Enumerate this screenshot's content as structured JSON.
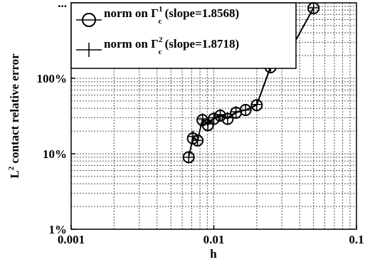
{
  "chart_data": {
    "type": "line",
    "xscale": "log",
    "yscale": "log",
    "xlim": [
      0.001,
      0.1
    ],
    "ylim": [
      0.01,
      10
    ],
    "xlabel": "h",
    "ylabel": {
      "prefix": "L",
      "sup": "2",
      "suffix": " contact relative error"
    },
    "x_ticks": [
      {
        "value": 0.001,
        "label": "0.001"
      },
      {
        "value": 0.01,
        "label": "0.01"
      },
      {
        "value": 0.1,
        "label": "0.1"
      }
    ],
    "y_ticks": [
      {
        "value": 0.01,
        "label": "1%"
      },
      {
        "value": 0.1,
        "label": "10%"
      },
      {
        "value": 1,
        "label": "100%"
      },
      {
        "value": 10,
        "label": "..."
      }
    ],
    "grid": true,
    "legend_position": "top-left",
    "series": [
      {
        "name": "norm on Γc1 (slope=1.8568)",
        "legend": {
          "pre": "norm on Γ",
          "sup": "1",
          "sub": "c",
          "post": " (slope=1.8568)"
        },
        "marker": "circle",
        "x": [
          0.00667,
          0.00714,
          0.00769,
          0.00833,
          0.00909,
          0.01,
          0.0111,
          0.0125,
          0.0143,
          0.0167,
          0.02,
          0.025,
          0.0333,
          0.05
        ],
        "y": [
          0.09,
          0.16,
          0.15,
          0.28,
          0.24,
          0.29,
          0.32,
          0.29,
          0.35,
          0.38,
          0.44,
          1.4,
          2.1,
          8.5
        ]
      },
      {
        "name": "norm on Γc2 (slope=1.8718)",
        "legend": {
          "pre": "norm on Γ",
          "sup": "2",
          "sub": "c",
          "post": " (slope=1.8718)"
        },
        "marker": "plus",
        "x": [
          0.00667,
          0.00714,
          0.00769,
          0.00833,
          0.00909,
          0.01,
          0.0111,
          0.0125,
          0.0143,
          0.0167,
          0.02,
          0.025,
          0.0333,
          0.05
        ],
        "y": [
          0.09,
          0.17,
          0.15,
          0.29,
          0.25,
          0.3,
          0.33,
          0.3,
          0.36,
          0.38,
          0.45,
          1.45,
          2.15,
          8.6
        ]
      }
    ]
  }
}
